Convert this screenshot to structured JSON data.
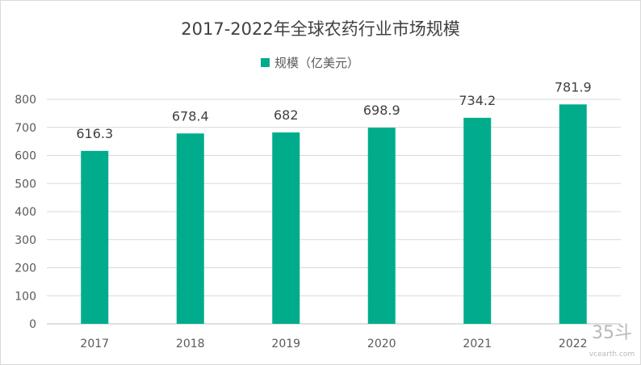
{
  "chart_data": {
    "type": "bar",
    "title": "2017-2022年全球农药行业市场规模",
    "legend": {
      "label": "规模（亿美元）",
      "position": "top"
    },
    "categories": [
      "2017",
      "2018",
      "2019",
      "2020",
      "2021",
      "2022"
    ],
    "series": [
      {
        "name": "规模（亿美元）",
        "values": [
          616.3,
          678.4,
          682,
          698.9,
          734.2,
          781.9
        ]
      }
    ],
    "data_labels": [
      "616.3",
      "678.4",
      "682",
      "698.9",
      "734.2",
      "781.9"
    ],
    "ylim": [
      0,
      800
    ],
    "yticks": [
      0,
      100,
      200,
      300,
      400,
      500,
      600,
      700,
      800
    ],
    "grid": true,
    "color": "#00ac8c",
    "xlabel": "",
    "ylabel": ""
  },
  "watermark": {
    "main": "35斗",
    "sub": "vcearth.com"
  }
}
